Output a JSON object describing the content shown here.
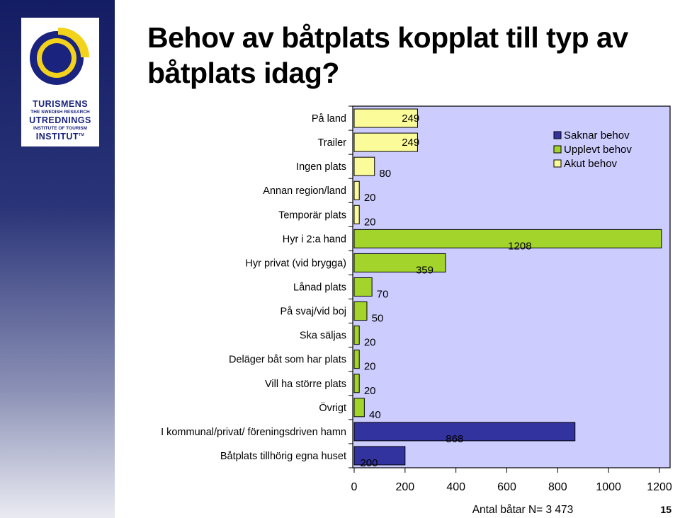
{
  "title": "Behov av båtplats kopplat till typ av båtplats idag?",
  "logo": {
    "line1": "TURISMENS",
    "line2": "THE SWEDISH RESEARCH",
    "line3": "UTREDNINGS",
    "line4": "INSTITUTE OF TOURISM",
    "line5": "INSTITUT",
    "tm": "TM",
    "colors": {
      "navy": "#1a237e",
      "yellow": "#f2d21b"
    }
  },
  "page_number": "15",
  "chart_data": {
    "type": "bar",
    "orientation": "horizontal",
    "categories": [
      "På land",
      "Trailer",
      "Ingen plats",
      "Annan region/land",
      "Temporär plats",
      "Hyr i 2:a hand",
      "Hyr privat (vid brygga)",
      "Lånad plats",
      "På svaj/vid boj",
      "Ska säljas",
      "Deläger båt som har plats",
      "Vill ha större plats",
      "Övrigt",
      "I kommunal/privat/ föreningsdriven hamn",
      "Båtplats tillhörig egna huset"
    ],
    "values": [
      249,
      249,
      80,
      20,
      20,
      1208,
      359,
      70,
      50,
      20,
      20,
      20,
      40,
      868,
      200
    ],
    "value_labels": [
      "249",
      "249",
      "80",
      "20",
      "20",
      "1208",
      "359",
      "70",
      "50",
      "20",
      "20",
      "20",
      "40",
      "868",
      "200"
    ],
    "bar_series": [
      "Akut behov",
      "Akut behov",
      "Akut behov",
      "Akut behov",
      "Akut behov",
      "Upplevt behov",
      "Upplevt behov",
      "Upplevt behov",
      "Upplevt behov",
      "Upplevt behov",
      "Upplevt behov",
      "Upplevt behov",
      "Upplevt behov",
      "Saknar behov",
      "Saknar behov"
    ],
    "series": [
      {
        "name": "Saknar behov",
        "color": "#3333a0"
      },
      {
        "name": "Upplevt behov",
        "color": "#a2d42c"
      },
      {
        "name": "Akut behov",
        "color": "#fbfb9a"
      }
    ],
    "xlabel": "Antal båtar  N= 3 473",
    "xlim": [
      0,
      1200
    ],
    "xticks": [
      "0",
      "200",
      "400",
      "600",
      "800",
      "1000",
      "1200"
    ],
    "xtick_values": [
      0,
      200,
      400,
      600,
      800,
      1000,
      1200
    ],
    "plot_background": "#ccccff",
    "grid": false,
    "legend_position": "top-right"
  }
}
